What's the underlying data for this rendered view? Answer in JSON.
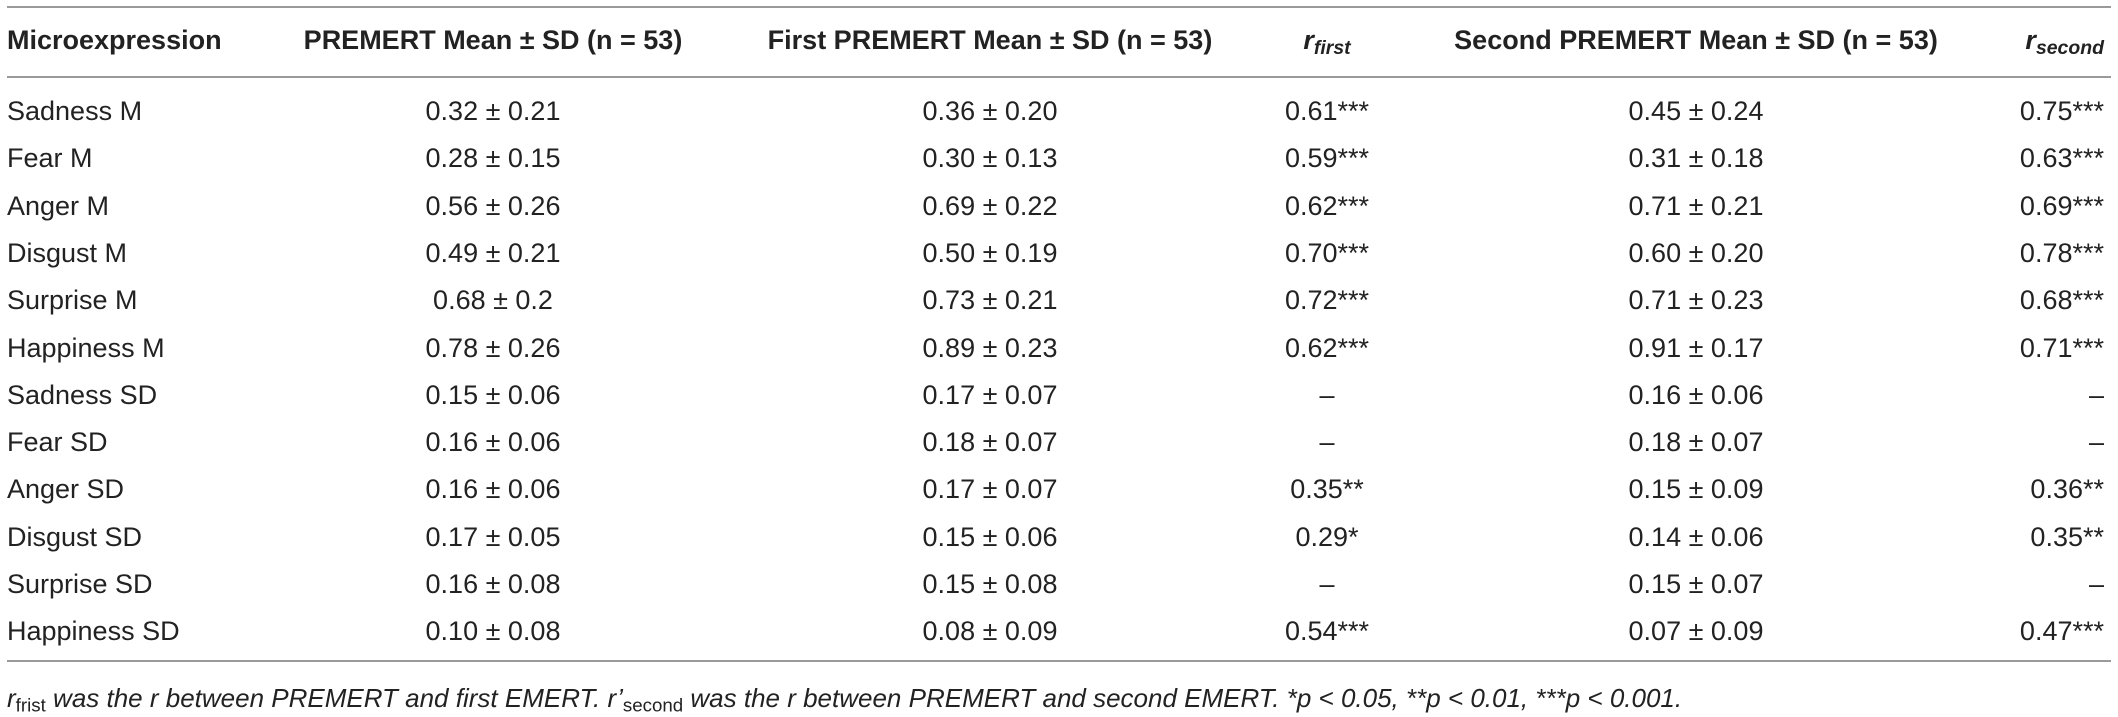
{
  "table": {
    "header": [
      "Microexpression",
      "PREMERT Mean ± SD (n = 53)",
      "First PREMERT Mean ± SD (n = 53)",
      {
        "main": "r",
        "sub": "first"
      },
      "Second PREMERT Mean ± SD (n = 53)",
      {
        "main": "r",
        "sub": "second"
      }
    ],
    "rows": [
      [
        "Sadness M",
        "0.32 ± 0.21",
        "0.36 ± 0.20",
        "0.61***",
        "0.45 ± 0.24",
        "0.75***"
      ],
      [
        "Fear M",
        "0.28 ± 0.15",
        "0.30 ± 0.13",
        "0.59***",
        "0.31 ± 0.18",
        "0.63***"
      ],
      [
        "Anger M",
        "0.56 ± 0.26",
        "0.69 ± 0.22",
        "0.62***",
        "0.71 ± 0.21",
        "0.69***"
      ],
      [
        "Disgust M",
        "0.49 ± 0.21",
        "0.50 ± 0.19",
        "0.70***",
        "0.60 ± 0.20",
        "0.78***"
      ],
      [
        "Surprise M",
        "0.68 ± 0.2",
        "0.73 ± 0.21",
        "0.72***",
        "0.71 ± 0.23",
        "0.68***"
      ],
      [
        "Happiness M",
        "0.78 ± 0.26",
        "0.89 ± 0.23",
        "0.62***",
        "0.91 ± 0.17",
        "0.71***"
      ],
      [
        "Sadness SD",
        "0.15 ± 0.06",
        "0.17 ± 0.07",
        "–",
        "0.16 ± 0.06",
        "–"
      ],
      [
        "Fear SD",
        "0.16 ± 0.06",
        "0.18 ± 0.07",
        "–",
        "0.18 ± 0.07",
        "–"
      ],
      [
        "Anger SD",
        "0.16 ± 0.06",
        "0.17 ± 0.07",
        "0.35**",
        "0.15 ± 0.09",
        "0.36**"
      ],
      [
        "Disgust SD",
        "0.17 ± 0.05",
        "0.15 ± 0.06",
        "0.29*",
        "0.14 ± 0.06",
        "0.35**"
      ],
      [
        "Surprise SD",
        "0.16 ± 0.08",
        "0.15 ± 0.08",
        "–",
        "0.15 ± 0.07",
        "–"
      ],
      [
        "Happiness SD",
        "0.10 ± 0.08",
        "0.08 ± 0.09",
        "0.54***",
        "0.07 ± 0.09",
        "0.47***"
      ]
    ]
  },
  "footnote": {
    "parts": [
      {
        "text": "r"
      },
      {
        "text": "frist",
        "sub": true
      },
      {
        "text": " was the r between PREMERT and first EMERT. r’"
      },
      {
        "text": "second",
        "sub": true
      },
      {
        "text": " was the r between PREMERT and second EMERT. *p < 0.05, **p < 0.01, ***p < 0.001."
      }
    ]
  }
}
